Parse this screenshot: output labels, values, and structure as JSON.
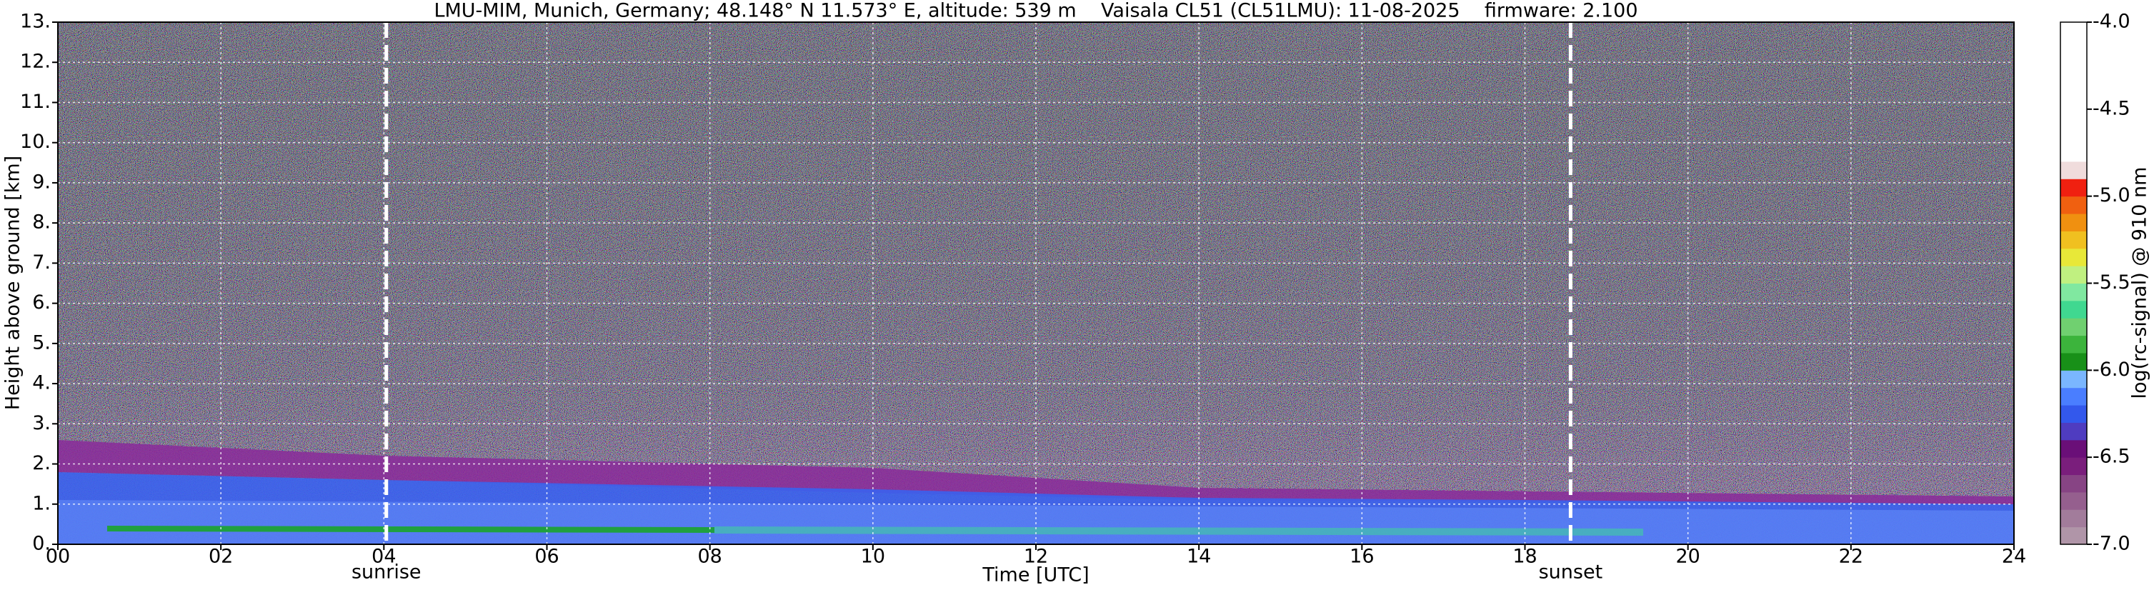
{
  "chart_data": {
    "type": "heatmap",
    "title": "LMU-MIM, Munich, Germany; 48.148° N 11.573° E, altitude: 539 m    Vaisala CL51 (CL51LMU): 11-08-2025    firmware: 2.100",
    "xlabel": "Time [UTC]",
    "ylabel": "Height above ground [km]",
    "xlim": [
      0,
      24
    ],
    "xticks": [
      {
        "value": 0,
        "label": "00"
      },
      {
        "value": 2,
        "label": "02"
      },
      {
        "value": 4,
        "label": "04"
      },
      {
        "value": 6,
        "label": "06"
      },
      {
        "value": 8,
        "label": "08"
      },
      {
        "value": 10,
        "label": "10"
      },
      {
        "value": 12,
        "label": "12"
      },
      {
        "value": 14,
        "label": "14"
      },
      {
        "value": 16,
        "label": "16"
      },
      {
        "value": 18,
        "label": "18"
      },
      {
        "value": 20,
        "label": "20"
      },
      {
        "value": 22,
        "label": "22"
      },
      {
        "value": 24,
        "label": "24"
      }
    ],
    "ylim": [
      0,
      13
    ],
    "yticks": [
      {
        "value": 0,
        "label": "0."
      },
      {
        "value": 1,
        "label": "1."
      },
      {
        "value": 2,
        "label": "2."
      },
      {
        "value": 3,
        "label": "3."
      },
      {
        "value": 4,
        "label": "4."
      },
      {
        "value": 5,
        "label": "5."
      },
      {
        "value": 6,
        "label": "6."
      },
      {
        "value": 7,
        "label": "7."
      },
      {
        "value": 8,
        "label": "8."
      },
      {
        "value": 9,
        "label": "9."
      },
      {
        "value": 10,
        "label": "10."
      },
      {
        "value": 11,
        "label": "11."
      },
      {
        "value": 12,
        "label": "12."
      },
      {
        "value": 13,
        "label": "13."
      }
    ],
    "grid": true,
    "annotations": [
      {
        "text": "sunrise",
        "x": 4.03
      },
      {
        "text": "sunset",
        "x": 18.56
      }
    ],
    "colorbar": {
      "label": "log(rc-signal) @ 910 nm",
      "lim": [
        -7,
        -4
      ],
      "ticks": [
        {
          "value": -7,
          "label": "-7.0"
        },
        {
          "value": -6.5,
          "label": "-6.5"
        },
        {
          "value": -6,
          "label": "-6.0"
        },
        {
          "value": -5.5,
          "label": "-5.5"
        },
        {
          "value": -5,
          "label": "-5.0"
        },
        {
          "value": -4.5,
          "label": "-4.5"
        },
        {
          "value": -4,
          "label": "-4.0"
        }
      ],
      "colors": [
        "#b095a8",
        "#a27c9b",
        "#955f8e",
        "#874484",
        "#7a1e7c",
        "#6a0f78",
        "#4f3cc0",
        "#3358ec",
        "#4a7eff",
        "#7ab6ff",
        "#189018",
        "#3cb43c",
        "#70d070",
        "#40d890",
        "#80e8a0",
        "#c0f080",
        "#e8e838",
        "#f0c020",
        "#f09010",
        "#f06010",
        "#f02010",
        "#f0dcdc",
        "#ffffff",
        "#ffffff",
        "#ffffff",
        "#ffffff",
        "#ffffff",
        "#ffffff",
        "#ffffff",
        "#ffffff"
      ]
    }
  }
}
